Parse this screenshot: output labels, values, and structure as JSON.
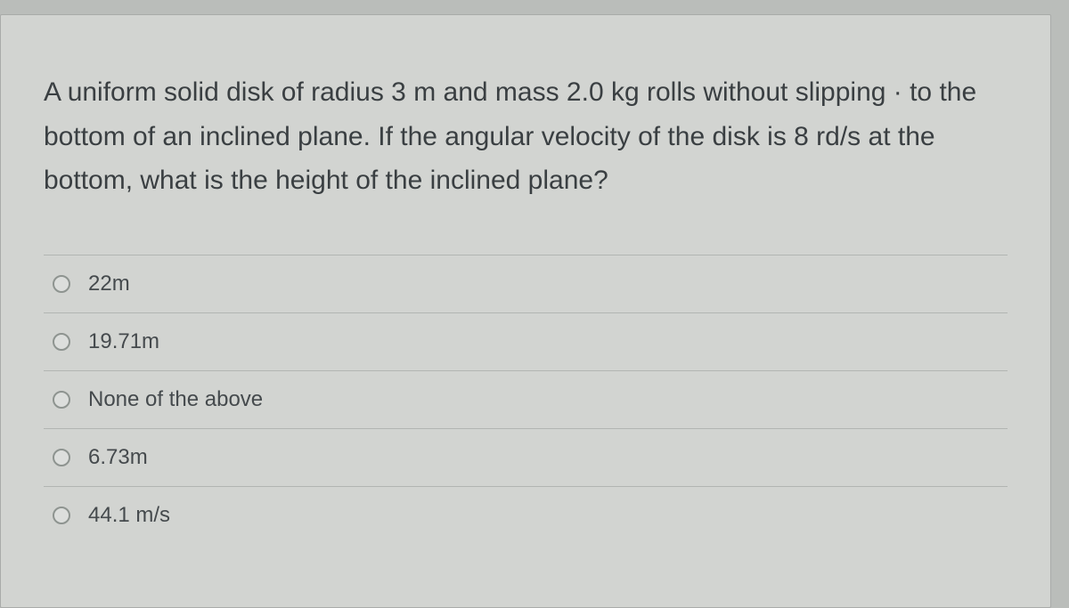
{
  "question": {
    "text": "A uniform solid disk of radius 3 m and mass 2.0 kg rolls without slipping · to the bottom of an inclined plane. If the angular velocity of the disk is 8 rd/s  at the bottom, what is the height of the inclined plane?"
  },
  "options": [
    {
      "label": "22m"
    },
    {
      "label": "19.71m"
    },
    {
      "label": "None of the above"
    },
    {
      "label": "6.73m"
    },
    {
      "label": "44.1 m/s"
    }
  ],
  "colors": {
    "page_bg": "#babdba",
    "card_bg": "#d2d4d1",
    "divider": "#b2b5b2",
    "text": "#3a3f42",
    "radio_border": "#8e9490"
  },
  "typography": {
    "question_fontsize": 30,
    "option_fontsize": 24
  }
}
